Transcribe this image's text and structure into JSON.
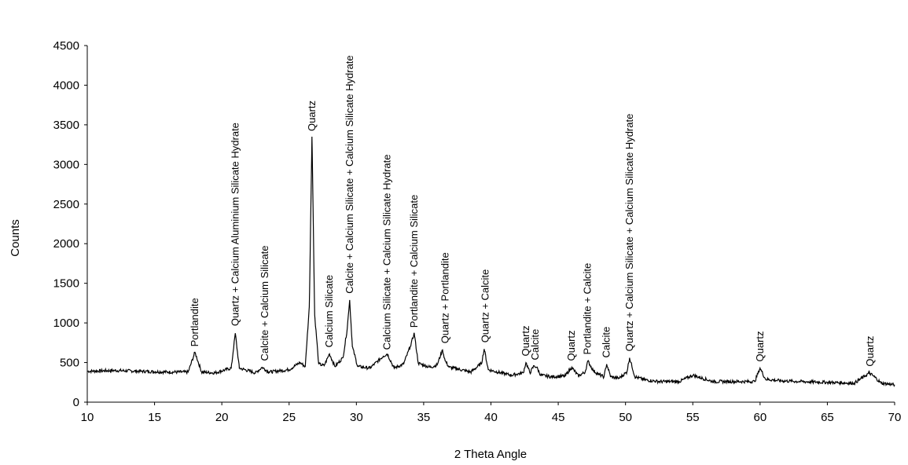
{
  "chart_data": {
    "type": "line",
    "title": "",
    "xlabel": "2 Theta Angle",
    "ylabel": "Counts",
    "xlim": [
      10,
      70
    ],
    "ylim": [
      0,
      4500
    ],
    "x_ticks": [
      10,
      15,
      20,
      25,
      30,
      35,
      40,
      45,
      50,
      55,
      60,
      65,
      70
    ],
    "y_ticks": [
      0,
      500,
      1000,
      1500,
      2000,
      2500,
      3000,
      3500,
      4000,
      4500
    ],
    "grid": false,
    "legend": "none",
    "line_color": "#000000",
    "series": [
      {
        "x": [
          10,
          12,
          14,
          16,
          17.5,
          18.0,
          18.5,
          19.5,
          20.7,
          21.0,
          21.3,
          22.5,
          23.0,
          23.5,
          25.0,
          25.8,
          26.2,
          26.5,
          26.7,
          26.9,
          27.2,
          27.6,
          28.0,
          28.4,
          29.0,
          29.3,
          29.5,
          29.7,
          30.1,
          31.0,
          32.0,
          32.3,
          32.8,
          33.5,
          34.0,
          34.3,
          34.6,
          35.5,
          36.0,
          36.4,
          36.6,
          36.9,
          37.5,
          38.5,
          39.3,
          39.5,
          39.8,
          40.5,
          41.5,
          42.4,
          42.6,
          42.9,
          43.2,
          43.4,
          43.7,
          44.5,
          45.5,
          46.0,
          46.5,
          47.0,
          47.2,
          47.6,
          48.0,
          48.4,
          48.6,
          48.9,
          49.5,
          50.1,
          50.3,
          50.7,
          51.5,
          52.5,
          54.0,
          55.0,
          56.5,
          58.0,
          59.6,
          60.0,
          60.4,
          61.5,
          63.0,
          65.0,
          67.0,
          67.8,
          68.1,
          68.5,
          69.0,
          70.0
        ],
        "y": [
          390,
          400,
          390,
          380,
          380,
          630,
          380,
          370,
          430,
          870,
          430,
          370,
          440,
          380,
          410,
          500,
          450,
          1200,
          3350,
          1100,
          480,
          460,
          610,
          450,
          560,
          900,
          1290,
          700,
          450,
          430,
          580,
          610,
          430,
          480,
          700,
          870,
          490,
          440,
          470,
          660,
          520,
          440,
          420,
          380,
          490,
          670,
          410,
          380,
          340,
          370,
          500,
          370,
          460,
          440,
          340,
          320,
          330,
          440,
          330,
          380,
          520,
          400,
          350,
          320,
          480,
          320,
          300,
          380,
          560,
          320,
          280,
          260,
          260,
          340,
          260,
          260,
          260,
          430,
          290,
          270,
          260,
          250,
          240,
          330,
          370,
          320,
          240,
          220
        ]
      }
    ],
    "annotations": [
      {
        "text": "Portlandite",
        "x": 18.0,
        "y": 700
      },
      {
        "text": "Quartz + Calcium Aluminium Silicate Hydrate",
        "x": 21.0,
        "y": 960
      },
      {
        "text": "Calcite + Calcium Silicate",
        "x": 23.2,
        "y": 520
      },
      {
        "text": "Quartz",
        "x": 26.7,
        "y": 3420
      },
      {
        "text": "Calcium Silicate",
        "x": 28.0,
        "y": 690
      },
      {
        "text": "Calcite + Calcium Silicate + Calcium Silicate Hydrate",
        "x": 29.5,
        "y": 1370
      },
      {
        "text": "Calcium Silicate + Calcium Silicate Hydrate",
        "x": 32.3,
        "y": 660
      },
      {
        "text": "Portlandite + Calcium Silicate",
        "x": 34.3,
        "y": 940
      },
      {
        "text": "Quartz + Portlandite",
        "x": 36.6,
        "y": 740
      },
      {
        "text": "Quartz + Calcite",
        "x": 39.6,
        "y": 750
      },
      {
        "text": "Quartz",
        "x": 42.6,
        "y": 580
      },
      {
        "text": "Calcite",
        "x": 43.3,
        "y": 530
      },
      {
        "text": "Quartz",
        "x": 46.0,
        "y": 520
      },
      {
        "text": "Portlandite + Calcite",
        "x": 47.2,
        "y": 600
      },
      {
        "text": "Calcite",
        "x": 48.6,
        "y": 560
      },
      {
        "text": "Quartz + Calcium Silicate + Calcium Silicate Hydrate",
        "x": 50.3,
        "y": 640
      },
      {
        "text": "Quartz",
        "x": 60.0,
        "y": 510
      },
      {
        "text": "Quartz",
        "x": 68.2,
        "y": 450
      }
    ]
  }
}
